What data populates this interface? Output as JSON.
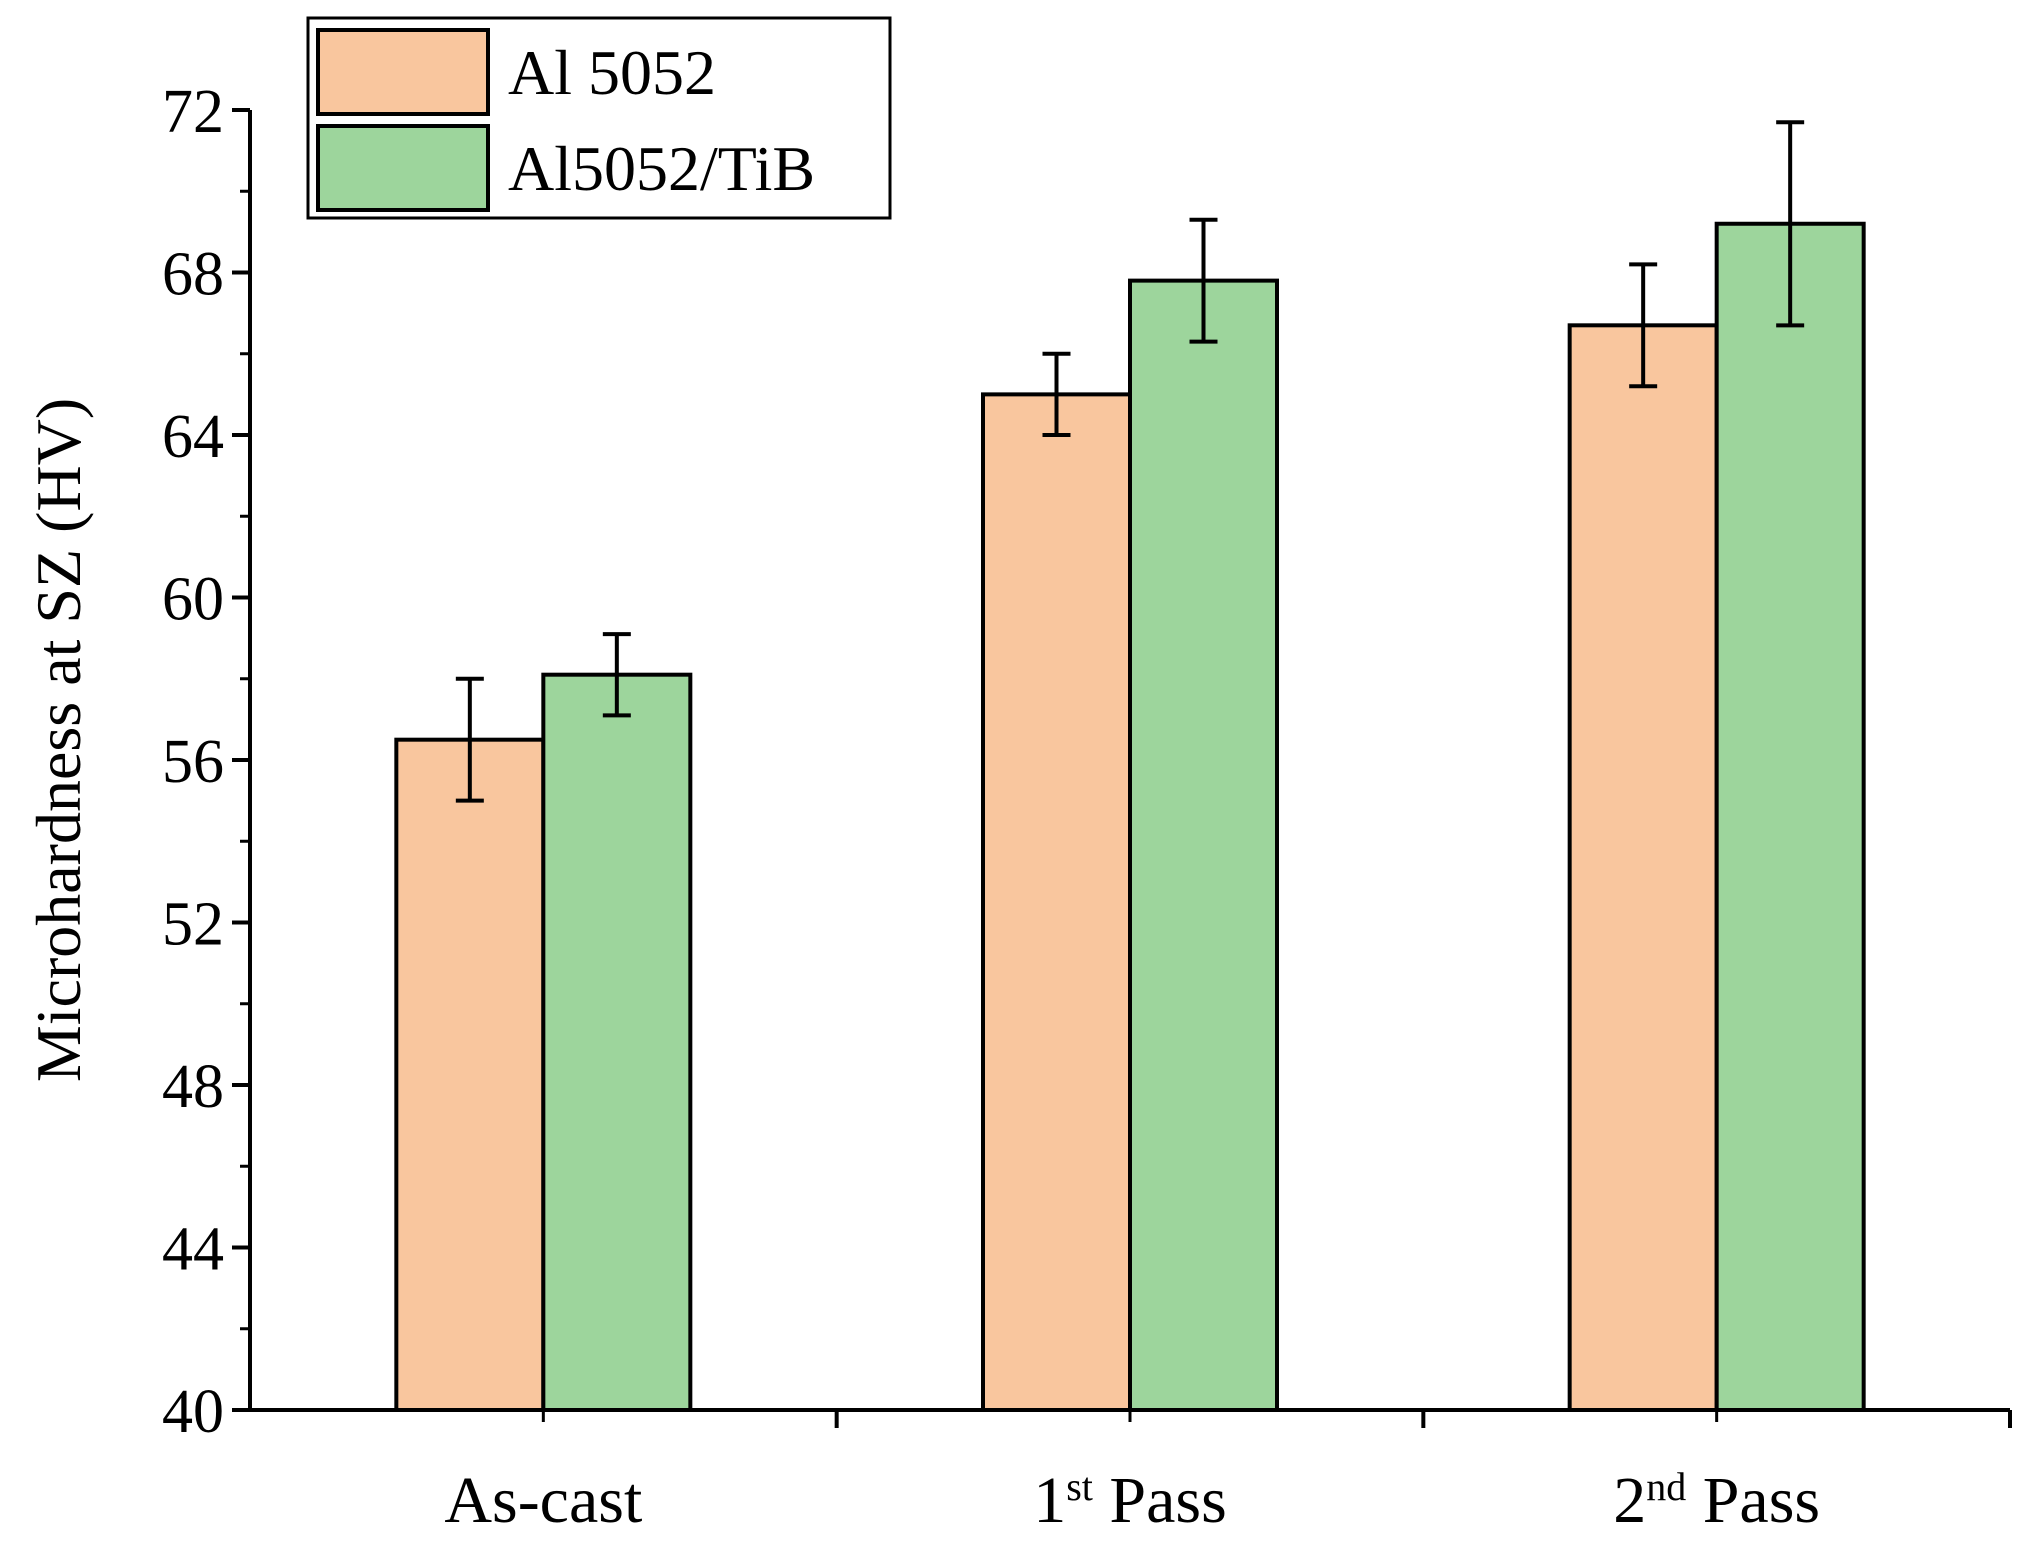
{
  "chart_data": {
    "type": "bar",
    "title": "",
    "xlabel": "",
    "ylabel": "Microhardness at SZ (HV)",
    "ylim": [
      40,
      72
    ],
    "yticks": [
      40,
      44,
      48,
      52,
      56,
      60,
      64,
      68,
      72
    ],
    "categories": [
      {
        "main": "As-cast",
        "sup": "",
        "rest": ""
      },
      {
        "main": "1",
        "sup": "st",
        "rest": " Pass"
      },
      {
        "main": "2",
        "sup": "nd",
        "rest": " Pass"
      }
    ],
    "series": [
      {
        "name": "Al 5052",
        "color": "#F9C69E",
        "values": [
          56.5,
          65.0,
          66.7
        ],
        "errors": [
          1.5,
          1.0,
          1.5
        ]
      },
      {
        "name": "Al5052/TiB",
        "color": "#9DD59C",
        "values": [
          58.1,
          67.8,
          69.2
        ],
        "errors": [
          1.0,
          1.5,
          2.5
        ]
      }
    ],
    "legend_position": "top-left",
    "grid": false
  }
}
